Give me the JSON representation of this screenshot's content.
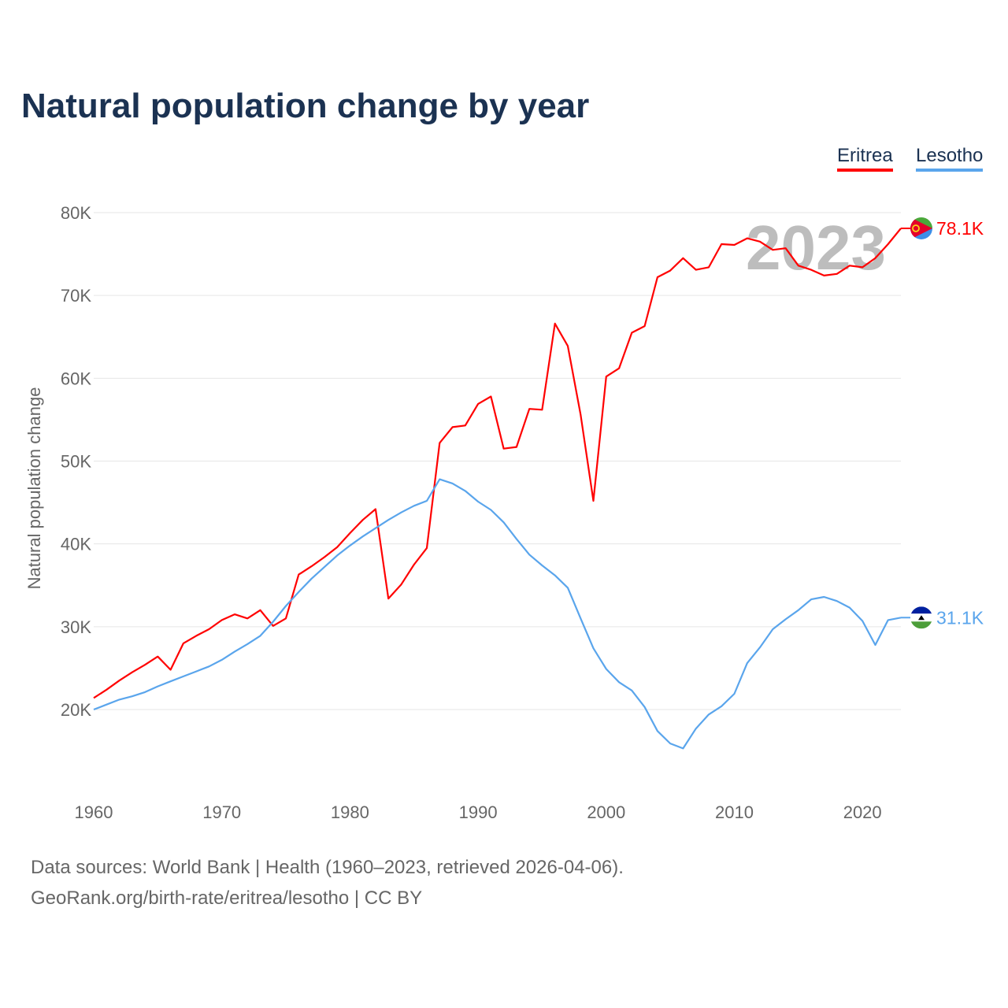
{
  "chart_data": {
    "type": "line",
    "title": "Natural population change by year",
    "xlabel": "",
    "ylabel": "Natural population change",
    "xlim": [
      1960,
      2023
    ],
    "ylim": [
      10.6,
      80
    ],
    "y_unit": "thousands",
    "y_ticks": [
      20,
      30,
      40,
      50,
      60,
      70,
      80
    ],
    "y_tick_labels": [
      "20K",
      "30K",
      "40K",
      "50K",
      "60K",
      "70K",
      "80K"
    ],
    "x_ticks": [
      1960,
      1970,
      1980,
      1990,
      2000,
      2010,
      2020
    ],
    "x_tick_labels": [
      "1960",
      "1970",
      "1980",
      "1990",
      "2000",
      "2010",
      "2020"
    ],
    "grid": true,
    "legend_position": "top-right",
    "year_watermark": "2023",
    "x": [
      1960,
      1961,
      1962,
      1963,
      1964,
      1965,
      1966,
      1967,
      1968,
      1969,
      1970,
      1971,
      1972,
      1973,
      1974,
      1975,
      1976,
      1977,
      1978,
      1979,
      1980,
      1981,
      1982,
      1983,
      1984,
      1985,
      1986,
      1987,
      1988,
      1989,
      1990,
      1991,
      1992,
      1993,
      1994,
      1995,
      1996,
      1997,
      1998,
      1999,
      2000,
      2001,
      2002,
      2003,
      2004,
      2005,
      2006,
      2007,
      2008,
      2009,
      2010,
      2011,
      2012,
      2013,
      2014,
      2015,
      2016,
      2017,
      2018,
      2019,
      2020,
      2021,
      2022,
      2023
    ],
    "series": [
      {
        "name": "Eritrea",
        "color": "#ff0000",
        "end_label": "78.1K",
        "values": [
          21.4,
          22.4,
          23.5,
          24.5,
          25.4,
          26.4,
          24.8,
          28.0,
          28.9,
          29.7,
          30.8,
          31.5,
          31.0,
          32.0,
          30.1,
          31.0,
          36.3,
          37.3,
          38.4,
          39.6,
          41.3,
          42.9,
          44.2,
          33.4,
          35.1,
          37.5,
          39.5,
          52.2,
          54.1,
          54.3,
          56.9,
          57.8,
          51.5,
          51.7,
          56.3,
          56.2,
          66.6,
          63.9,
          55.6,
          45.2,
          60.2,
          61.2,
          65.5,
          66.3,
          72.2,
          73.0,
          74.5,
          73.1,
          73.4,
          76.2,
          76.1,
          76.9,
          76.5,
          75.5,
          75.7,
          73.6,
          73.1,
          72.4,
          72.6,
          73.6,
          73.4,
          74.5,
          76.2,
          78.1
        ]
      },
      {
        "name": "Lesotho",
        "color": "#5aa5ec",
        "end_label": "31.1K",
        "values": [
          20.0,
          20.6,
          21.2,
          21.6,
          22.1,
          22.8,
          23.4,
          24.0,
          24.6,
          25.2,
          26.0,
          27.0,
          27.9,
          28.9,
          30.6,
          32.5,
          34.2,
          35.8,
          37.2,
          38.6,
          39.8,
          40.9,
          41.9,
          42.9,
          43.8,
          44.6,
          45.2,
          47.8,
          47.3,
          46.4,
          45.1,
          44.1,
          42.6,
          40.6,
          38.7,
          37.4,
          36.2,
          34.7,
          31.0,
          27.4,
          24.9,
          23.3,
          22.3,
          20.3,
          17.4,
          15.9,
          15.3,
          17.7,
          19.4,
          20.4,
          21.9,
          25.6,
          27.5,
          29.7,
          30.9,
          32.0,
          33.3,
          33.6,
          33.1,
          32.3,
          30.7,
          27.8,
          30.8,
          31.1
        ]
      }
    ]
  },
  "sources": {
    "line1": "Data sources: World Bank | Health (1960–2023, retrieved 2026-04-06).",
    "line2": "GeoRank.org/birth-rate/eritrea/lesotho | CC BY"
  }
}
